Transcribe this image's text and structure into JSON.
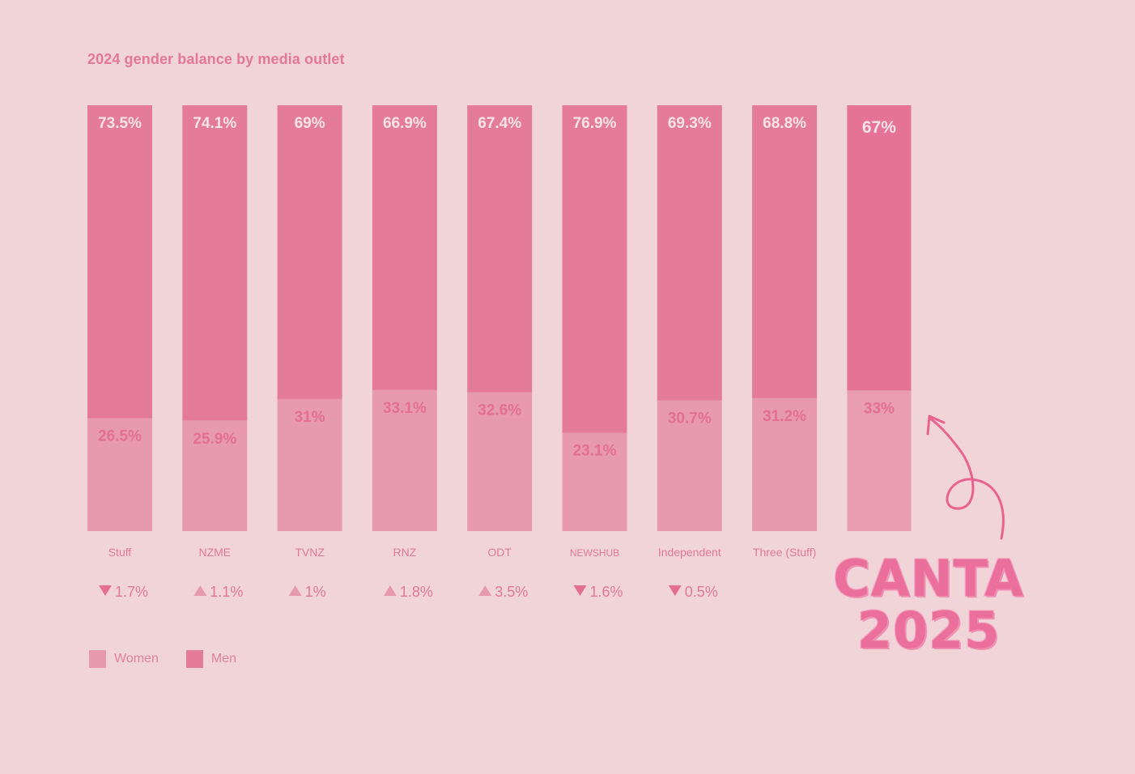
{
  "chart_data": {
    "type": "bar",
    "stacked": true,
    "normalized_percent": true,
    "title": "2024 gender balance by media outlet",
    "categories": [
      "Stuff",
      "NZME",
      "TVNZ",
      "RNZ",
      "ODT",
      "NEWSHUB",
      "Independent",
      "Three (Stuff)",
      ""
    ],
    "series": [
      {
        "name": "Women",
        "values": [
          26.5,
          25.9,
          31,
          33.1,
          32.6,
          23.1,
          30.7,
          31.2,
          33
        ],
        "labels": [
          "26.5%",
          "25.9%",
          "31%",
          "33.1%",
          "32.6%",
          "23.1%",
          "30.7%",
          "31.2%",
          "33%"
        ]
      },
      {
        "name": "Men",
        "values": [
          73.5,
          74.1,
          69,
          66.9,
          67.4,
          76.9,
          69.3,
          68.8,
          67
        ],
        "labels": [
          "73.5%",
          "74.1%",
          "69%",
          "66.9%",
          "67.4%",
          "76.9%",
          "69.3%",
          "68.8%",
          "67%"
        ]
      }
    ],
    "change_labels": [
      {
        "dir": "down",
        "text": "1.7%"
      },
      {
        "dir": "up",
        "text": "1.1%"
      },
      {
        "dir": "up",
        "text": "1%"
      },
      {
        "dir": "up",
        "text": "1.8%"
      },
      {
        "dir": "up",
        "text": "3.5%"
      },
      {
        "dir": "down",
        "text": "1.6%"
      },
      {
        "dir": "down",
        "text": "0.5%"
      },
      null,
      null
    ],
    "ylim": [
      0,
      100
    ],
    "grid": false,
    "legend_position": "bottom-left",
    "highlighted_bar_index": 8
  },
  "colors": {
    "background": "#f0d4d7",
    "men": "#e47c99",
    "women": "#e79aae",
    "highlight_men": "#e57396",
    "highlight_women": "#e89db0",
    "text_light": "#f8e3e8",
    "text_dark": "#e36f93",
    "axis_text": "#e27899",
    "arrow": "#e8638f"
  },
  "legend": {
    "women_label": "Women",
    "men_label": "Men"
  },
  "stamp": {
    "line1": "CANTA",
    "line2": "2025"
  },
  "annotation": {
    "arrow_icon": "curly-arrow-icon"
  }
}
